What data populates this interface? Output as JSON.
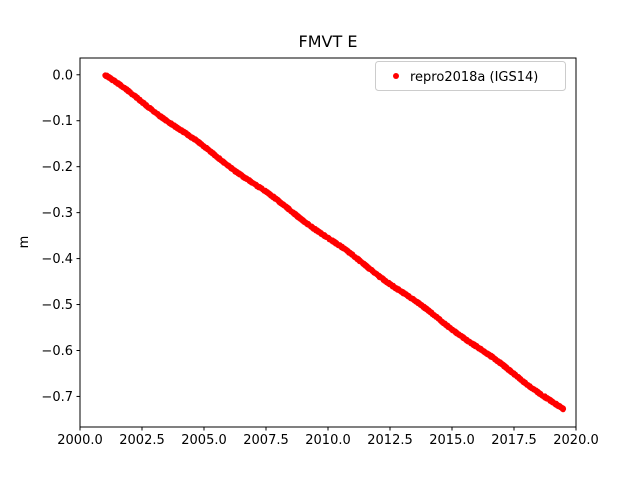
{
  "figure": {
    "title": "FMVT E",
    "background_color": "#ffffff"
  },
  "chart_data": {
    "type": "scatter",
    "title": "FMVT E",
    "xlabel": "",
    "ylabel": "m",
    "xlim": [
      2000.0,
      2020.0
    ],
    "ylim": [
      -0.7665,
      0.0365
    ],
    "xticks": [
      2000.0,
      2002.5,
      2005.0,
      2007.5,
      2010.0,
      2012.5,
      2015.0,
      2017.5,
      2020.0
    ],
    "xtick_labels": [
      "2000.0",
      "2002.5",
      "2005.0",
      "2007.5",
      "2010.0",
      "2012.5",
      "2015.0",
      "2017.5",
      "2020.0"
    ],
    "yticks": [
      0.0,
      -0.1,
      -0.2,
      -0.3,
      -0.4,
      -0.5,
      -0.6,
      -0.7
    ],
    "ytick_labels": [
      "0.0",
      "−0.1",
      "−0.2",
      "−0.3",
      "−0.4",
      "−0.5",
      "−0.6",
      "−0.7"
    ],
    "grid": false,
    "legend_position": "upper right",
    "series": [
      {
        "name": "repro2018a (IGS14)",
        "color": "#ff0000",
        "marker": "point",
        "sampling": "dense near-daily points forming a thick line",
        "trend_points": {
          "x": [
            2001.0,
            2019.5
          ],
          "y": [
            0.0,
            -0.73
          ]
        },
        "slope_m_per_year": -0.0395
      }
    ]
  }
}
